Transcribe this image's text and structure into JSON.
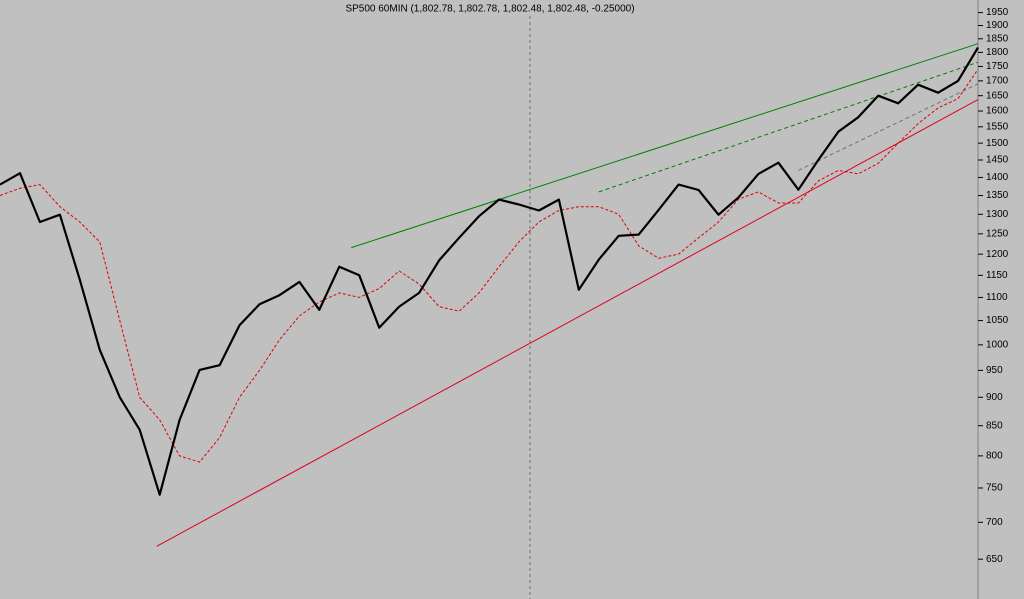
{
  "chart_data": {
    "type": "line",
    "title": "SP500 60MIN (1,802.78, 1,802.78, 1,802.48, 1,802.48, -0.25000)",
    "log_scale": true,
    "ylim": [
      600,
      2000
    ],
    "yticks": [
      650,
      700,
      750,
      800,
      850,
      900,
      950,
      1000,
      1050,
      1100,
      1150,
      1200,
      1250,
      1300,
      1350,
      1400,
      1450,
      1500,
      1550,
      1600,
      1650,
      1700,
      1750,
      1800,
      1850,
      1900,
      1950
    ],
    "series": [
      {
        "color": "#000000",
        "dash": "",
        "width": 2.2,
        "values": [
          1380,
          1412,
          1280,
          1299,
          1140,
          990,
          900,
          843,
          740,
          860,
          951,
          960,
          1040,
          1085,
          1105,
          1135,
          1073,
          1170,
          1150,
          1035,
          1080,
          1110,
          1185,
          1240,
          1295,
          1339,
          1326,
          1310,
          1339,
          1117,
          1187,
          1245,
          1248,
          1312,
          1380,
          1365,
          1299,
          1345,
          1410,
          1442,
          1366,
          1450,
          1535,
          1580,
          1650,
          1625,
          1687,
          1660,
          1700,
          1818
        ]
      },
      {
        "color": "#e00000",
        "dash": "3,2",
        "width": 1,
        "values": [
          1350,
          1370,
          1380,
          1320,
          1280,
          1230,
          1050,
          900,
          860,
          800,
          790,
          830,
          900,
          950,
          1010,
          1060,
          1090,
          1110,
          1100,
          1120,
          1160,
          1130,
          1080,
          1070,
          1110,
          1170,
          1230,
          1280,
          1310,
          1320,
          1320,
          1300,
          1220,
          1190,
          1200,
          1240,
          1280,
          1340,
          1360,
          1330,
          1330,
          1390,
          1420,
          1410,
          1440,
          1500,
          1560,
          1610,
          1640,
          1740
        ]
      }
    ],
    "trendlines": [
      {
        "color": "#008000",
        "dash": "",
        "x": [
          17.6,
          49
        ],
        "values": [
          1216,
          1832
        ]
      },
      {
        "color": "#008000",
        "dash": "4,3",
        "x": [
          30,
          49
        ],
        "values": [
          1360,
          1765
        ]
      },
      {
        "color": "#e00020",
        "dash": "",
        "x": [
          7.85,
          49
        ],
        "values": [
          667,
          1637
        ]
      },
      {
        "color": "#707070",
        "dash": "4,3",
        "x": [
          40,
          49
        ],
        "values": [
          1420,
          1690
        ]
      }
    ]
  }
}
